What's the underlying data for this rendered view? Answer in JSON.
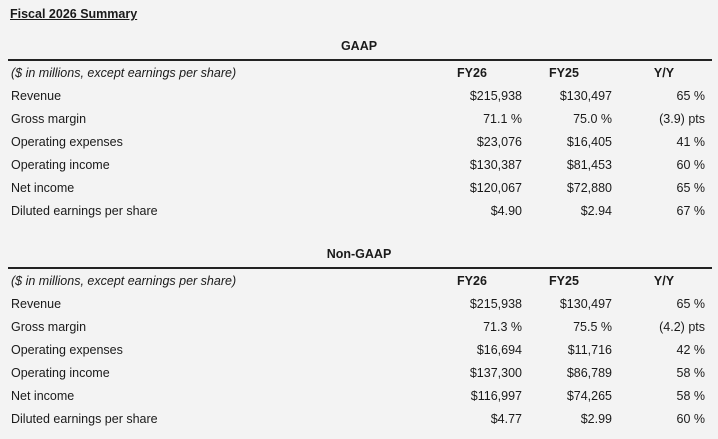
{
  "title": "Fiscal 2026 Summary",
  "sections": [
    {
      "heading": "GAAP",
      "subheader": "($ in millions, except earnings per share)",
      "columns": [
        "FY26",
        "FY25",
        "Y/Y"
      ],
      "rows": [
        {
          "label": "Revenue",
          "fy26": "$215,938",
          "fy25": "$130,497",
          "yy": "65 %"
        },
        {
          "label": "Gross margin",
          "fy26": "71.1 %",
          "fy25": "75.0 %",
          "yy": "(3.9) pts"
        },
        {
          "label": "Operating expenses",
          "fy26": "$23,076",
          "fy25": "$16,405",
          "yy": "41 %"
        },
        {
          "label": "Operating income",
          "fy26": "$130,387",
          "fy25": "$81,453",
          "yy": "60 %"
        },
        {
          "label": "Net income",
          "fy26": "$120,067",
          "fy25": "$72,880",
          "yy": "65 %"
        },
        {
          "label": "Diluted earnings per share",
          "fy26": "$4.90",
          "fy25": "$2.94",
          "yy": "67 %"
        }
      ]
    },
    {
      "heading": "Non-GAAP",
      "subheader": "($ in millions, except earnings per share)",
      "columns": [
        "FY26",
        "FY25",
        "Y/Y"
      ],
      "rows": [
        {
          "label": "Revenue",
          "fy26": "$215,938",
          "fy25": "$130,497",
          "yy": "65 %"
        },
        {
          "label": "Gross margin",
          "fy26": "71.3 %",
          "fy25": "75.5 %",
          "yy": "(4.2) pts"
        },
        {
          "label": "Operating expenses",
          "fy26": "$16,694",
          "fy25": "$11,716",
          "yy": "42 %"
        },
        {
          "label": "Operating income",
          "fy26": "$137,300",
          "fy25": "$86,789",
          "yy": "58 %"
        },
        {
          "label": "Net income",
          "fy26": "$116,997",
          "fy25": "$74,265",
          "yy": "58 %"
        },
        {
          "label": "Diluted earnings per share",
          "fy26": "$4.77",
          "fy25": "$2.99",
          "yy": "60 %"
        }
      ]
    }
  ]
}
